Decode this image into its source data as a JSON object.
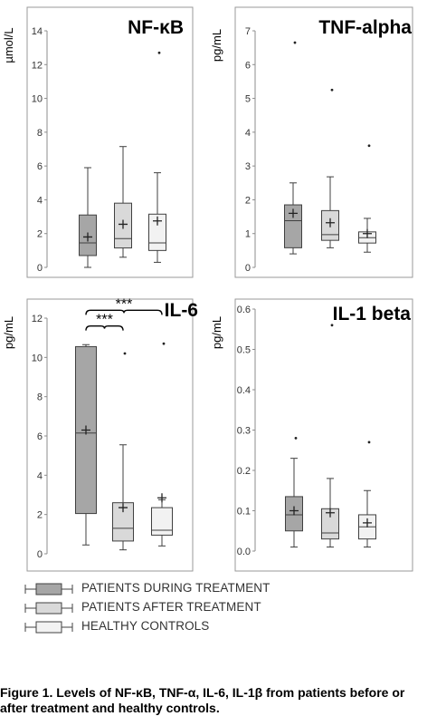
{
  "chart_data": [
    {
      "type": "box",
      "title": "NF-κB",
      "ylabel": "µmol/L",
      "ylim": [
        0,
        14
      ],
      "yticks": [
        0,
        2,
        4,
        6,
        8,
        10,
        12,
        14
      ],
      "tick_decimals": 0,
      "boxes": [
        {
          "group": "PATIENTS DURING TREATMENT",
          "whisker_low": 0.0,
          "q1": 0.7,
          "median": 1.45,
          "q3": 3.1,
          "whisker_high": 5.9,
          "mean": 1.8,
          "outliers": []
        },
        {
          "group": "PATIENTS AFTER TREATMENT",
          "whisker_low": 0.6,
          "q1": 1.15,
          "median": 1.7,
          "q3": 3.8,
          "whisker_high": 7.15,
          "mean": 2.55,
          "outliers": []
        },
        {
          "group": "HEALTHY CONTROLS",
          "whisker_low": 0.3,
          "q1": 1.0,
          "median": 1.45,
          "q3": 3.15,
          "whisker_high": 5.6,
          "mean": 2.75,
          "outliers": [
            12.7
          ]
        }
      ],
      "annotations": []
    },
    {
      "type": "box",
      "title": "TNF-alpha",
      "ylabel": "pg/mL",
      "ylim": [
        0,
        7
      ],
      "yticks": [
        0,
        1,
        2,
        3,
        4,
        5,
        6,
        7
      ],
      "tick_decimals": 0,
      "boxes": [
        {
          "group": "PATIENTS DURING TREATMENT",
          "whisker_low": 0.4,
          "q1": 0.58,
          "median": 1.38,
          "q3": 1.85,
          "whisker_high": 2.5,
          "mean": 1.6,
          "outliers": [
            6.65
          ]
        },
        {
          "group": "PATIENTS AFTER TREATMENT",
          "whisker_low": 0.58,
          "q1": 0.8,
          "median": 0.97,
          "q3": 1.68,
          "whisker_high": 2.68,
          "mean": 1.32,
          "outliers": [
            5.25
          ]
        },
        {
          "group": "HEALTHY CONTROLS",
          "whisker_low": 0.45,
          "q1": 0.72,
          "median": 0.88,
          "q3": 1.05,
          "whisker_high": 1.45,
          "mean": 1.0,
          "outliers": [
            3.6
          ]
        }
      ],
      "annotations": []
    },
    {
      "type": "box",
      "title": "IL-6",
      "ylabel": "pg/mL",
      "ylim": [
        0,
        12
      ],
      "yticks": [
        0,
        2,
        4,
        6,
        8,
        10,
        12
      ],
      "tick_decimals": 0,
      "boxes": [
        {
          "group": "PATIENTS DURING TREATMENT",
          "whisker_low": 0.45,
          "q1": 2.05,
          "median": 6.15,
          "q3": 10.55,
          "whisker_high": 10.65,
          "mean": 6.3,
          "outliers": []
        },
        {
          "group": "PATIENTS AFTER TREATMENT",
          "whisker_low": 0.2,
          "q1": 0.65,
          "median": 1.3,
          "q3": 2.6,
          "whisker_high": 5.55,
          "mean": 2.35,
          "outliers": [
            10.2
          ]
        },
        {
          "group": "HEALTHY CONTROLS",
          "whisker_low": 0.4,
          "q1": 0.95,
          "median": 1.2,
          "q3": 2.35,
          "whisker_high": 2.75,
          "mean": 2.85,
          "outliers": [
            10.7
          ]
        }
      ],
      "annotations": [
        {
          "label": "***",
          "from_box": 0,
          "to_box": 2,
          "level": 12.4
        },
        {
          "label": "***",
          "from_box": 0,
          "to_box": 1,
          "level": 11.6
        }
      ]
    },
    {
      "type": "box",
      "title": "IL-1 beta",
      "ylabel": "pg/mL",
      "ylim": [
        0,
        0.6
      ],
      "yticks": [
        0,
        0.1,
        0.2,
        0.3,
        0.4,
        0.5,
        0.6
      ],
      "tick_decimals": 1,
      "boxes": [
        {
          "group": "PATIENTS DURING TREATMENT",
          "whisker_low": 0.01,
          "q1": 0.05,
          "median": 0.09,
          "q3": 0.135,
          "whisker_high": 0.23,
          "mean": 0.1,
          "outliers": [
            0.28
          ]
        },
        {
          "group": "PATIENTS AFTER TREATMENT",
          "whisker_low": 0.01,
          "q1": 0.03,
          "median": 0.045,
          "q3": 0.105,
          "whisker_high": 0.18,
          "mean": 0.095,
          "outliers": [
            0.56
          ]
        },
        {
          "group": "HEALTHY CONTROLS",
          "whisker_low": 0.01,
          "q1": 0.03,
          "median": 0.06,
          "q3": 0.09,
          "whisker_high": 0.15,
          "mean": 0.07,
          "outliers": [
            0.27
          ]
        }
      ],
      "annotations": []
    }
  ],
  "colors": {
    "during": "#a6a6a6",
    "after": "#d9d9d9",
    "controls": "#f2f2f2",
    "frame": "#9a9a9a",
    "stroke": "#404040"
  },
  "legend": [
    {
      "label": "PATIENTS DURING TREATMENT",
      "color": "#a6a6a6"
    },
    {
      "label": "PATIENTS AFTER TREATMENT",
      "color": "#d9d9d9"
    },
    {
      "label": "HEALTHY CONTROLS",
      "color": "#f2f2f2"
    }
  ],
  "caption": "Figure 1. Levels of NF-κB, TNF-α, IL-6, IL-1β from patients before or after treatment and healthy controls."
}
